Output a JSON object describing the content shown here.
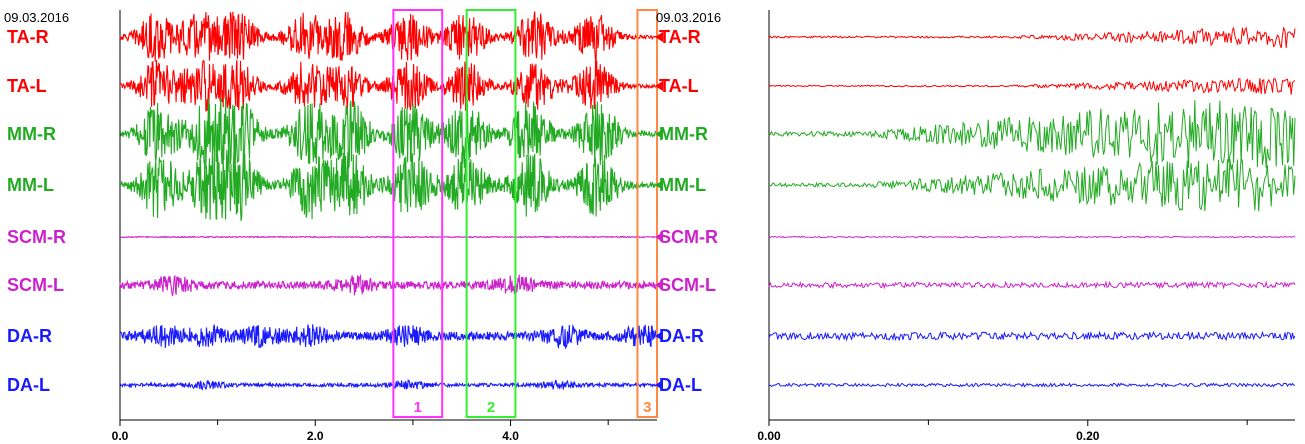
{
  "chart_data": [
    {
      "type": "line",
      "date": "09.03.2016",
      "xlim": [
        0.0,
        5.5
      ],
      "x_ticks": [
        "0.0",
        "2.0",
        "4.0"
      ],
      "x_tick_values": [
        0.0,
        2.0,
        4.0
      ],
      "x_minor_ticks": [
        1.0,
        3.0,
        5.0
      ],
      "series": [
        {
          "name": "TA-R",
          "color": "#ff0000",
          "amplitude": 1.0,
          "bursts": [
            0.38,
            0.82,
            1.2,
            1.9,
            2.3,
            2.95,
            3.55,
            4.25,
            4.85
          ]
        },
        {
          "name": "TA-L",
          "color": "#ff0000",
          "amplitude": 1.0,
          "bursts": [
            0.38,
            0.82,
            1.2,
            1.9,
            2.3,
            2.95,
            3.55,
            4.25,
            4.85
          ]
        },
        {
          "name": "MM-R",
          "color": "#22aa22",
          "amplitude": 1.0,
          "bursts": [
            0.4,
            0.9,
            1.22,
            1.95,
            2.35,
            2.98,
            3.55,
            4.2,
            4.9
          ]
        },
        {
          "name": "MM-L",
          "color": "#22aa22",
          "amplitude": 1.0,
          "bursts": [
            0.4,
            0.9,
            1.22,
            1.95,
            2.35,
            2.98,
            3.55,
            4.2,
            4.9
          ]
        },
        {
          "name": "SCM-R",
          "color": "#cc22cc",
          "amplitude": 0.15,
          "bursts": []
        },
        {
          "name": "SCM-L",
          "color": "#cc22cc",
          "amplitude": 0.45,
          "bursts": [
            0.55,
            2.4,
            4.05
          ]
        },
        {
          "name": "DA-R",
          "color": "#1a1aff",
          "amplitude": 0.5,
          "bursts": [
            0.45,
            0.9,
            1.45,
            1.95,
            2.95,
            4.55,
            5.35
          ]
        },
        {
          "name": "DA-L",
          "color": "#1a1aff",
          "amplitude": 0.2,
          "bursts": [
            0.9,
            2.95,
            4.5
          ]
        }
      ],
      "annotation_boxes": [
        {
          "label": "1",
          "x_start": 2.8,
          "x_end": 3.3,
          "color": "#ff33ff"
        },
        {
          "label": "2",
          "x_start": 3.55,
          "x_end": 4.05,
          "color": "#33ee33"
        },
        {
          "label": "3",
          "x_start": 5.3,
          "x_end": 5.55,
          "color": "#ff8844"
        }
      ]
    },
    {
      "type": "line",
      "date": "09.03.2016",
      "xlim": [
        0.0,
        0.33
      ],
      "x_ticks": [
        "0.00",
        "0.20"
      ],
      "x_tick_values": [
        0.0,
        0.2
      ],
      "x_minor_ticks": [
        0.1,
        0.3
      ],
      "series": [
        {
          "name": "TA-R",
          "color": "#ff0000",
          "amplitude": 0.5
        },
        {
          "name": "TA-L",
          "color": "#ff0000",
          "amplitude": 0.4
        },
        {
          "name": "MM-R",
          "color": "#22aa22",
          "amplitude": 1.0
        },
        {
          "name": "MM-L",
          "color": "#22aa22",
          "amplitude": 0.8
        },
        {
          "name": "SCM-R",
          "color": "#cc22cc",
          "amplitude": 0.15
        },
        {
          "name": "SCM-L",
          "color": "#cc22cc",
          "amplitude": 0.25
        },
        {
          "name": "DA-R",
          "color": "#1a1aff",
          "amplitude": 0.35
        },
        {
          "name": "DA-L",
          "color": "#1a1aff",
          "amplitude": 0.15
        }
      ]
    }
  ]
}
